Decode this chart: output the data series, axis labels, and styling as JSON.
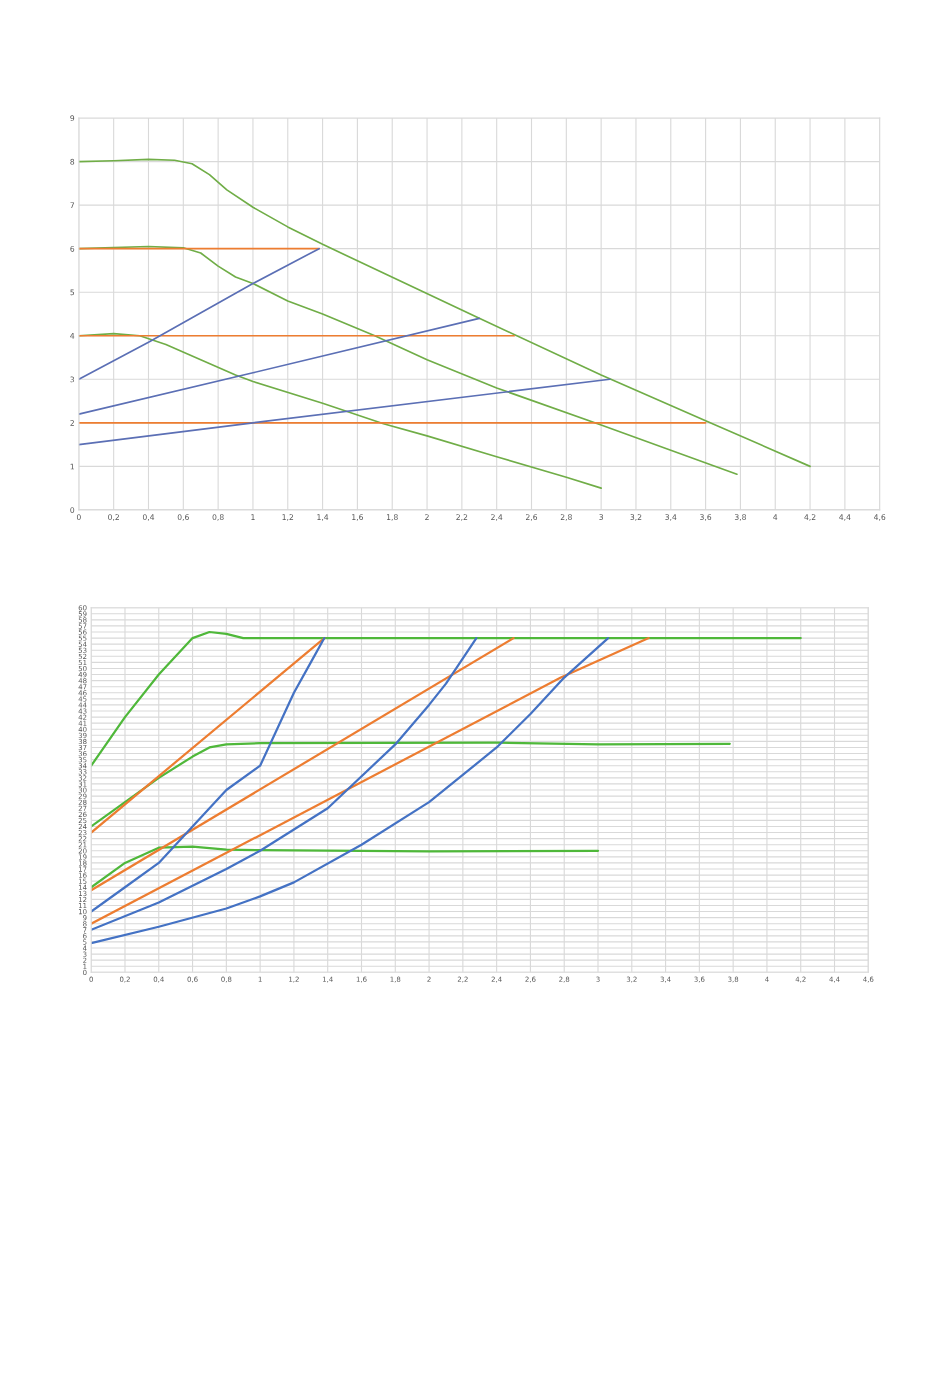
{
  "chart_data": [
    {
      "type": "line",
      "xlim": [
        0,
        4.6
      ],
      "ylim": [
        0,
        9
      ],
      "grid": true,
      "xticks": [
        0,
        {
          "value": 0.2,
          "label": "0,2"
        },
        {
          "value": 0.4,
          "label": "0,4"
        },
        {
          "value": 0.6,
          "label": "0,6"
        },
        {
          "value": 0.8,
          "label": "0,8"
        },
        1,
        {
          "value": 1.2,
          "label": "1,2"
        },
        {
          "value": 1.4,
          "label": "1,4"
        },
        {
          "value": 1.6,
          "label": "1,6"
        },
        {
          "value": 1.8,
          "label": "1,8"
        },
        2,
        {
          "value": 2.2,
          "label": "2,2"
        },
        {
          "value": 2.4,
          "label": "2,4"
        },
        {
          "value": 2.6,
          "label": "2,6"
        },
        {
          "value": 2.8,
          "label": "2,8"
        },
        3,
        {
          "value": 3.2,
          "label": "3,2"
        },
        {
          "value": 3.4,
          "label": "3,4"
        },
        {
          "value": 3.6,
          "label": "3,6"
        },
        {
          "value": 3.8,
          "label": "3,8"
        },
        4,
        {
          "value": 4.2,
          "label": "4,2"
        },
        {
          "value": 4.4,
          "label": "4,4"
        },
        {
          "value": 4.6,
          "label": "4,6"
        }
      ],
      "yticks": [
        0,
        1,
        2,
        3,
        4,
        5,
        6,
        7,
        8,
        9
      ],
      "series": [
        {
          "color": "#70ad47",
          "x": [
            0,
            0.2,
            0.4,
            0.55,
            0.65,
            0.75,
            0.85,
            1,
            1.2,
            1.4,
            2.3,
            3,
            3.6,
            4.2
          ],
          "values": [
            8,
            8.02,
            8.05,
            8.03,
            7.95,
            7.7,
            7.35,
            6.95,
            6.5,
            6.1,
            4.4,
            3.1,
            2.05,
            1.0
          ]
        },
        {
          "color": "#70ad47",
          "x": [
            0,
            0.4,
            0.6,
            0.7,
            0.8,
            0.9,
            1,
            1.2,
            1.4,
            1.7,
            2.0,
            2.4,
            3.0,
            3.78
          ],
          "values": [
            6,
            6.05,
            6.02,
            5.9,
            5.6,
            5.35,
            5.2,
            4.8,
            4.5,
            4.0,
            3.45,
            2.8,
            1.95,
            0.82
          ]
        },
        {
          "color": "#70ad47",
          "x": [
            0,
            0.2,
            0.35,
            0.5,
            0.7,
            0.9,
            1,
            1.4,
            1.75,
            2.0,
            2.4,
            2.8,
            3.0
          ],
          "values": [
            4,
            4.05,
            4.0,
            3.8,
            3.45,
            3.1,
            2.95,
            2.45,
            1.98,
            1.7,
            1.22,
            0.75,
            0.5
          ]
        },
        {
          "color": "#ed7d31",
          "x": [
            0,
            1.38
          ],
          "values": [
            6,
            6
          ]
        },
        {
          "color": "#ed7d31",
          "x": [
            0,
            2.5
          ],
          "values": [
            4,
            4
          ]
        },
        {
          "color": "#ed7d31",
          "x": [
            0,
            3.6
          ],
          "values": [
            2,
            2
          ]
        },
        {
          "color": "#5b6fb5",
          "x": [
            0,
            0.4,
            1,
            1.38
          ],
          "values": [
            3,
            3.85,
            5.2,
            6
          ]
        },
        {
          "color": "#5b6fb5",
          "x": [
            0,
            1,
            2.3
          ],
          "values": [
            2.2,
            3.15,
            4.4
          ]
        },
        {
          "color": "#5b6fb5",
          "x": [
            0,
            1,
            3.05
          ],
          "values": [
            1.5,
            2.0,
            3.0
          ]
        }
      ]
    },
    {
      "type": "line",
      "xlim": [
        0,
        4.6
      ],
      "ylim": [
        0,
        60
      ],
      "grid": true,
      "xticks": [
        0,
        {
          "value": 0.2,
          "label": "0,2"
        },
        {
          "value": 0.4,
          "label": "0,4"
        },
        {
          "value": 0.6,
          "label": "0,6"
        },
        {
          "value": 0.8,
          "label": "0,8"
        },
        1,
        {
          "value": 1.2,
          "label": "1,2"
        },
        {
          "value": 1.4,
          "label": "1,4"
        },
        {
          "value": 1.6,
          "label": "1,6"
        },
        {
          "value": 1.8,
          "label": "1,8"
        },
        2,
        {
          "value": 2.2,
          "label": "2,2"
        },
        {
          "value": 2.4,
          "label": "2,4"
        },
        {
          "value": 2.6,
          "label": "2,6"
        },
        {
          "value": 2.8,
          "label": "2,8"
        },
        3,
        {
          "value": 3.2,
          "label": "3,2"
        },
        {
          "value": 3.4,
          "label": "3,4"
        },
        {
          "value": 3.6,
          "label": "3,6"
        },
        {
          "value": 3.8,
          "label": "3,8"
        },
        4,
        {
          "value": 4.2,
          "label": "4,2"
        },
        {
          "value": 4.4,
          "label": "4,4"
        },
        {
          "value": 4.6,
          "label": "4,6"
        }
      ],
      "yticks": [
        0,
        1,
        2,
        3,
        4,
        5,
        6,
        7,
        8,
        9,
        10,
        11,
        12,
        13,
        14,
        15,
        16,
        17,
        18,
        19,
        20,
        21,
        22,
        23,
        24,
        25,
        26,
        27,
        28,
        29,
        30,
        31,
        32,
        33,
        34,
        35,
        36,
        37,
        38,
        39,
        40,
        41,
        42,
        43,
        44,
        45,
        46,
        47,
        48,
        49,
        50,
        51,
        52,
        53,
        54,
        55,
        56,
        57,
        58,
        59,
        60
      ],
      "series": [
        {
          "color": "#4fb83a",
          "x": [
            0,
            0.2,
            0.4,
            0.6,
            0.7,
            0.8,
            0.9,
            4.2
          ],
          "values": [
            34,
            42,
            49,
            55,
            56,
            55.7,
            55,
            55
          ]
        },
        {
          "color": "#4fb83a",
          "x": [
            0,
            0.2,
            0.4,
            0.6,
            0.7,
            0.8,
            1,
            2.4,
            3.0,
            3.78
          ],
          "values": [
            24,
            28,
            32,
            35.5,
            37,
            37.5,
            37.7,
            37.8,
            37.5,
            37.6
          ]
        },
        {
          "color": "#4fb83a",
          "x": [
            0,
            0.2,
            0.4,
            0.6,
            0.8,
            1,
            2,
            3
          ],
          "values": [
            14,
            18,
            20.5,
            20.7,
            20.2,
            20.1,
            19.9,
            20
          ]
        },
        {
          "color": "#ed7d31",
          "x": [
            0,
            1.38
          ],
          "values": [
            23,
            55
          ]
        },
        {
          "color": "#ed7d31",
          "x": [
            0,
            2.5
          ],
          "values": [
            13.5,
            55
          ]
        },
        {
          "color": "#ed7d31",
          "x": [
            0,
            2.78,
            3.3
          ],
          "values": [
            8,
            48.5,
            55
          ]
        },
        {
          "color": "#4472c4",
          "x": [
            0,
            0.2,
            0.4,
            0.6,
            0.8,
            1,
            1.1,
            1.2,
            1.3,
            1.38
          ],
          "values": [
            10,
            14,
            18,
            24,
            30,
            34,
            40,
            46,
            51,
            55
          ]
        },
        {
          "color": "#4472c4",
          "x": [
            0,
            0.4,
            0.8,
            1,
            1.4,
            1.8,
            2.0,
            2.1,
            2.28
          ],
          "values": [
            7,
            11.5,
            17,
            20,
            27,
            37.5,
            44,
            47.5,
            55
          ]
        },
        {
          "color": "#4472c4",
          "x": [
            0,
            0.4,
            0.8,
            1,
            1.2,
            1.6,
            2.0,
            2.4,
            2.6,
            2.8,
            3.06
          ],
          "values": [
            4.8,
            7.5,
            10.5,
            12.5,
            14.8,
            21,
            28,
            37,
            42.5,
            48.5,
            55
          ]
        }
      ]
    }
  ]
}
